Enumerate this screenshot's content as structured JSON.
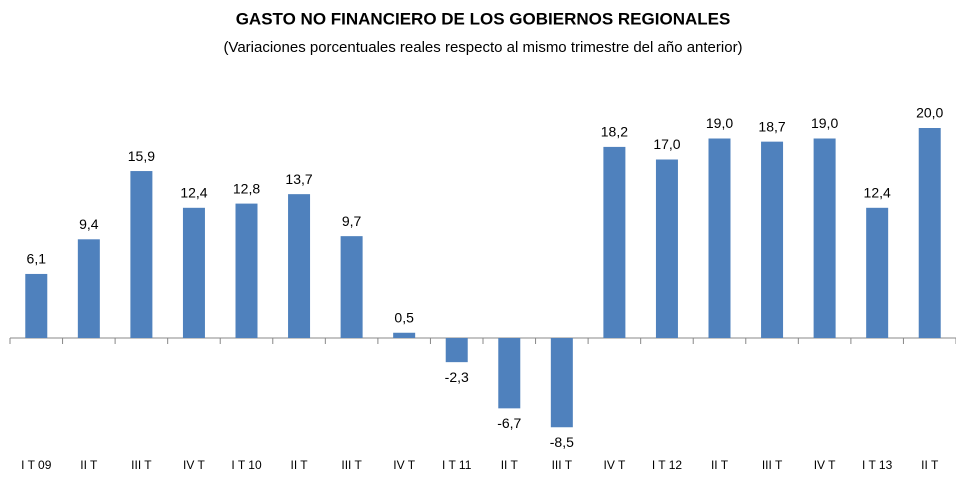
{
  "chart_data": {
    "type": "bar",
    "title": "GASTO NO FINANCIERO DE LOS GOBIERNOS REGIONALES",
    "subtitle": "(Variaciones porcentuales reales respecto al mismo trimestre del año anterior)",
    "categories": [
      "I T 09",
      "II T",
      "III T",
      "IV T",
      "I T 10",
      "II T",
      "III T",
      "IV T",
      "I T 11",
      "II T",
      "III T",
      "IV T",
      "I T 12",
      "II T",
      "III T",
      "IV T",
      "I T 13",
      "II T"
    ],
    "values": [
      6.1,
      9.4,
      15.9,
      12.4,
      12.8,
      13.7,
      9.7,
      0.5,
      -2.3,
      -6.7,
      -8.5,
      18.2,
      17.0,
      19.0,
      18.7,
      19.0,
      12.4,
      20.0
    ],
    "value_labels": [
      "6,1",
      "9,4",
      "15,9",
      "12,4",
      "12,8",
      "13,7",
      "9,7",
      "0,5",
      "-2,3",
      "-6,7",
      "-8,5",
      "18,2",
      "17,0",
      "19,0",
      "18,7",
      "19,0",
      "12,4",
      "20,0"
    ],
    "color": "#4f81bd"
  }
}
